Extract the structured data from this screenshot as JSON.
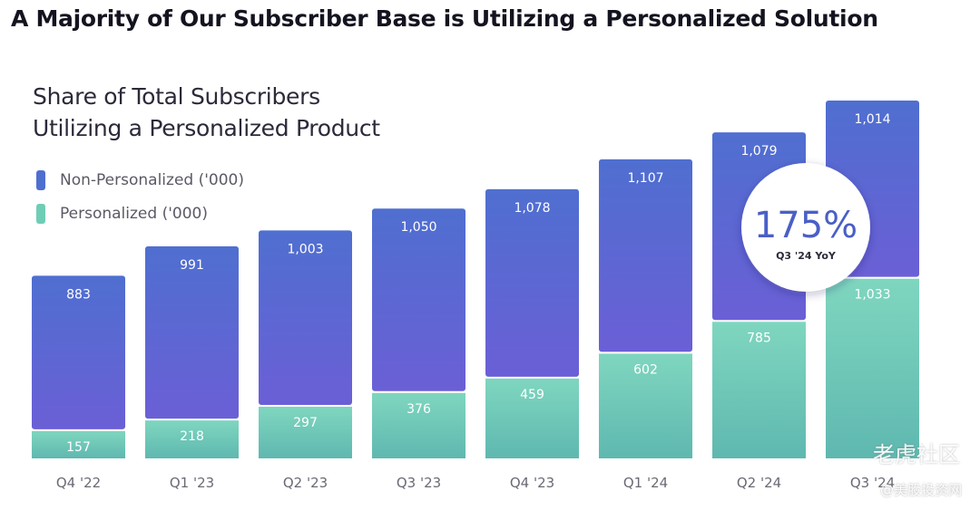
{
  "page": {
    "title": "A Majority of Our Subscriber Base is Utilizing a Personalized Solution"
  },
  "chart_title": {
    "line1": "Share of Total Subscribers",
    "line2": "Utilizing a Personalized Product"
  },
  "legend": [
    {
      "label": "Non-Personalized ('000)",
      "color": "#4f6fd0"
    },
    {
      "label": "Personalized ('000)",
      "color": "#6fcdb6"
    }
  ],
  "callout": {
    "value": "175%",
    "label": "Q3 '24 YoY"
  },
  "watermark": {
    "line1": "老虎社区",
    "line2": "@美股投资网"
  },
  "colors": {
    "non_personalized_top": "#4f6fd0",
    "non_personalized_bottom": "#6b5fd6",
    "personalized_top": "#7fd6bf",
    "personalized_bottom": "#5fb8b0"
  },
  "chart_data": {
    "type": "bar",
    "stacked": true,
    "categories": [
      "Q4 '22",
      "Q1 '23",
      "Q2 '23",
      "Q3 '23",
      "Q4 '23",
      "Q1 '24",
      "Q2 '24",
      "Q3 '24"
    ],
    "series": [
      {
        "name": "Personalized ('000)",
        "values": [
          157,
          218,
          297,
          376,
          459,
          602,
          785,
          1033
        ],
        "labels": [
          "157",
          "218",
          "297",
          "376",
          "459",
          "602",
          "785",
          "1,033"
        ]
      },
      {
        "name": "Non-Personalized ('000)",
        "values": [
          883,
          991,
          1003,
          1050,
          1078,
          1107,
          1079,
          1014
        ],
        "labels": [
          "883",
          "991",
          "1,003",
          "1,050",
          "1,078",
          "1,107",
          "1,079",
          "1,014"
        ]
      }
    ],
    "title": "Share of Total Subscribers Utilizing a Personalized Product",
    "xlabel": "",
    "ylabel": "",
    "grid": false,
    "legend_position": "top-left"
  }
}
